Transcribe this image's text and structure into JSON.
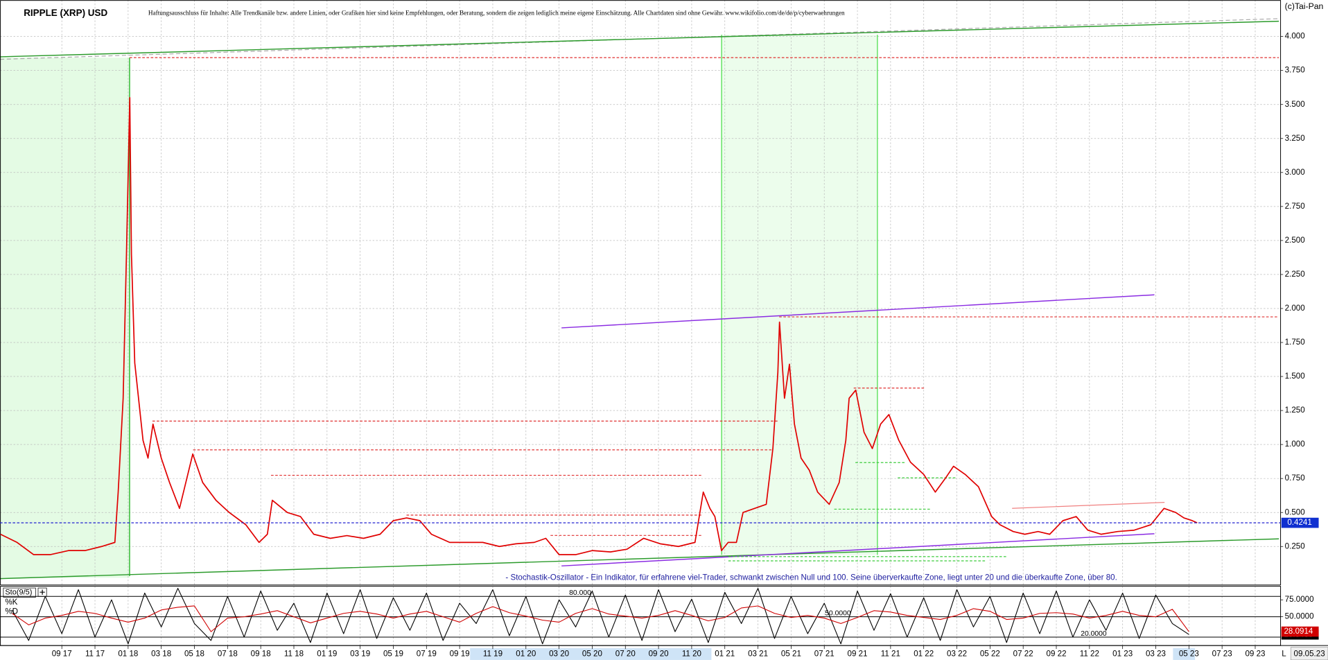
{
  "chart_data": [
    {
      "type": "line",
      "title": "RIPPLE (XRP) USD",
      "subtitle": "Haftungsausschluss für Inhalte: Alle Trendkanäle bzw. andere Linien, oder Grafiken hier sind keine Empfehlungen, oder Beratung, sondern die zeigen lediglich meine eigene Einschätzung. Alle Chartdaten sind ohne Gewähr. www.wikifolio.com/de/de/p/cyberwaehrungen",
      "source": "(c)Tai-Pan",
      "date_label": "09.05.23",
      "end_label": "L",
      "current_price": 0.4241,
      "x": [
        4.3,
        5.3,
        6.3,
        7.3,
        8.4,
        9.4,
        10.4,
        11.2,
        11.4,
        11.7,
        11.9,
        12.1,
        12.2,
        12.4,
        12.9,
        13.2,
        13.5,
        14.0,
        14.5,
        15.1,
        15.6,
        15.9,
        16.5,
        17.3,
        18.1,
        19.1,
        19.9,
        20.4,
        20.7,
        21.6,
        22.4,
        23.2,
        24.2,
        25.2,
        26.2,
        27.2,
        28.0,
        28.8,
        29.6,
        30.3,
        31.4,
        32.4,
        33.4,
        34.4,
        35.4,
        36.5,
        37.2,
        38.0,
        39.0,
        40.0,
        41.1,
        42.1,
        43.1,
        44.1,
        45.2,
        46.2,
        46.7,
        47.1,
        47.4,
        47.8,
        48.2,
        48.7,
        49.1,
        49.8,
        50.5,
        50.9,
        51.2,
        51.3,
        51.6,
        51.9,
        52.2,
        52.6,
        53.1,
        53.6,
        54.3,
        54.9,
        55.3,
        55.5,
        55.9,
        56.4,
        56.9,
        57.4,
        57.9,
        58.5,
        59.2,
        60.0,
        60.7,
        61.3,
        61.8,
        62.5,
        63.3,
        64.1,
        64.6,
        65.4,
        66.1,
        66.9,
        67.6,
        68.4,
        69.2,
        69.9,
        70.7,
        71.7,
        72.7,
        73.7,
        74.5,
        75.2,
        75.7,
        76.2,
        76.5
      ],
      "series": [
        {
          "color": "#e00000",
          "values": [
            0.34,
            0.28,
            0.19,
            0.19,
            0.22,
            0.22,
            0.25,
            0.28,
            0.65,
            1.34,
            2.4,
            3.55,
            2.4,
            1.6,
            1.03,
            0.9,
            1.15,
            0.9,
            0.72,
            0.53,
            0.78,
            0.93,
            0.72,
            0.59,
            0.5,
            0.41,
            0.28,
            0.34,
            0.59,
            0.5,
            0.47,
            0.34,
            0.31,
            0.33,
            0.31,
            0.34,
            0.44,
            0.46,
            0.44,
            0.34,
            0.28,
            0.28,
            0.28,
            0.25,
            0.27,
            0.28,
            0.31,
            0.19,
            0.19,
            0.22,
            0.21,
            0.23,
            0.31,
            0.27,
            0.25,
            0.28,
            0.65,
            0.53,
            0.47,
            0.22,
            0.28,
            0.28,
            0.5,
            0.53,
            0.56,
            0.97,
            1.53,
            1.9,
            1.34,
            1.59,
            1.15,
            0.9,
            0.81,
            0.65,
            0.56,
            0.72,
            1.03,
            1.34,
            1.4,
            1.09,
            0.97,
            1.15,
            1.22,
            1.03,
            0.87,
            0.78,
            0.65,
            0.75,
            0.84,
            0.78,
            0.69,
            0.47,
            0.41,
            0.36,
            0.34,
            0.36,
            0.34,
            0.44,
            0.47,
            0.37,
            0.34,
            0.36,
            0.37,
            0.41,
            0.53,
            0.5,
            0.46,
            0.44,
            0.4241
          ]
        }
      ],
      "xlim": [
        4.27,
        81.53
      ],
      "ylim": [
        -0.03,
        4.268
      ],
      "xticks": [
        {
          "value": 8,
          "label": "09 17"
        },
        {
          "value": 10,
          "label": "11 17"
        },
        {
          "value": 12,
          "label": "01 18"
        },
        {
          "value": 14,
          "label": "03 18"
        },
        {
          "value": 16,
          "label": "05 18"
        },
        {
          "value": 18,
          "label": "07 18"
        },
        {
          "value": 20,
          "label": "09 18"
        },
        {
          "value": 22,
          "label": "11 18"
        },
        {
          "value": 24,
          "label": "01 19"
        },
        {
          "value": 26,
          "label": "03 19"
        },
        {
          "value": 28,
          "label": "05 19"
        },
        {
          "value": 30,
          "label": "07 19"
        },
        {
          "value": 32,
          "label": "09 19"
        },
        {
          "value": 34,
          "label": "11 19"
        },
        {
          "value": 36,
          "label": "01 20"
        },
        {
          "value": 38,
          "label": "03 20"
        },
        {
          "value": 40,
          "label": "05 20"
        },
        {
          "value": 42,
          "label": "07 20"
        },
        {
          "value": 44,
          "label": "09 20"
        },
        {
          "value": 46,
          "label": "11 20"
        },
        {
          "value": 48,
          "label": "01 21"
        },
        {
          "value": 50,
          "label": "03 21"
        },
        {
          "value": 52,
          "label": "05 21"
        },
        {
          "value": 54,
          "label": "07 21"
        },
        {
          "value": 56,
          "label": "09 21"
        },
        {
          "value": 58,
          "label": "11 21"
        },
        {
          "value": 60,
          "label": "01 22"
        },
        {
          "value": 62,
          "label": "03 22"
        },
        {
          "value": 64,
          "label": "05 22"
        },
        {
          "value": 66,
          "label": "07 22"
        },
        {
          "value": 68,
          "label": "09 22"
        },
        {
          "value": 70,
          "label": "11 22"
        },
        {
          "value": 72,
          "label": "01 23"
        },
        {
          "value": 74,
          "label": "03 23"
        },
        {
          "value": 76,
          "label": "05 23"
        },
        {
          "value": 78,
          "label": "07 23"
        },
        {
          "value": 80,
          "label": "09 23"
        }
      ],
      "yticks": [
        {
          "value": 0.25,
          "label": "0.250"
        },
        {
          "value": 0.5,
          "label": "0.500"
        },
        {
          "value": 0.75,
          "label": "0.750"
        },
        {
          "value": 1,
          "label": "1.000"
        },
        {
          "value": 1.25,
          "label": "1.250"
        },
        {
          "value": 1.5,
          "label": "1.500"
        },
        {
          "value": 1.75,
          "label": "1.750"
        },
        {
          "value": 2,
          "label": "2.000"
        },
        {
          "value": 2.25,
          "label": "2.250"
        },
        {
          "value": 2.5,
          "label": "2.500"
        },
        {
          "value": 2.75,
          "label": "2.750"
        },
        {
          "value": 3,
          "label": "3.000"
        },
        {
          "value": 3.25,
          "label": "3.250"
        },
        {
          "value": 3.5,
          "label": "3.500"
        },
        {
          "value": 3.75,
          "label": "3.750"
        },
        {
          "value": 4,
          "label": "4.000"
        }
      ],
      "grid": true
    },
    {
      "type": "line",
      "title": "Sto(9/5)",
      "annotation": "- Stochastik-Oszillator - Ein Indikator, für erfahrene viel-Trader, schwankt zwischen Null und 100. Seine überverkaufte Zone, liegt unter 20 und die überkaufte Zone, über 80.",
      "x": [
        5,
        6,
        7,
        8,
        9,
        10,
        11,
        12,
        13,
        14,
        15,
        16,
        17,
        18,
        19,
        20,
        21,
        22,
        23,
        24,
        25,
        26,
        27,
        28,
        29,
        30,
        31,
        32,
        33,
        34,
        35,
        36,
        37,
        38,
        39,
        40,
        41,
        42,
        43,
        44,
        45,
        46,
        47,
        48,
        49,
        50,
        51,
        52,
        53,
        54,
        55,
        56,
        57,
        58,
        59,
        60,
        61,
        62,
        63,
        64,
        65,
        66,
        67,
        68,
        69,
        70,
        71,
        72,
        73,
        74,
        75,
        76
      ],
      "series": [
        {
          "name": "%K",
          "color": "#000000",
          "values": [
            60,
            15,
            80,
            25,
            90,
            20,
            75,
            10,
            85,
            35,
            92,
            40,
            15,
            80,
            20,
            88,
            30,
            70,
            12,
            85,
            25,
            90,
            18,
            78,
            30,
            85,
            15,
            70,
            40,
            90,
            22,
            80,
            10,
            75,
            35,
            88,
            20,
            82,
            15,
            90,
            28,
            76,
            12,
            86,
            40,
            92,
            18,
            80,
            25,
            70,
            10,
            88,
            30,
            84,
            20,
            78,
            15,
            90,
            35,
            80,
            12,
            85,
            25,
            88,
            20,
            75,
            30,
            85,
            18,
            82,
            40,
            23.8433
          ]
        },
        {
          "name": "%D",
          "color": "#d00000",
          "values": [
            55,
            38,
            48,
            52,
            58,
            55,
            48,
            42,
            48,
            60,
            64,
            66,
            28,
            48,
            50,
            54,
            59,
            50,
            41,
            48,
            55,
            58,
            54,
            48,
            54,
            58,
            50,
            42,
            55,
            65,
            56,
            51,
            45,
            42,
            55,
            62,
            54,
            51,
            48,
            52,
            59,
            52,
            44,
            49,
            63,
            66,
            55,
            49,
            52,
            48,
            40,
            49,
            59,
            57,
            52,
            49,
            46,
            52,
            62,
            58,
            46,
            48,
            55,
            56,
            54,
            48,
            52,
            58,
            52,
            50,
            61,
            28.0914
          ]
        }
      ],
      "xlim": [
        4.27,
        81.53
      ],
      "ylim": [
        7.5,
        95
      ],
      "yticks": [
        {
          "value": 75,
          "label": "75.0000"
        },
        {
          "value": 50,
          "label": "50.0000"
        }
      ],
      "levels": [
        {
          "value": 80,
          "label": "80.000"
        },
        {
          "value": 50,
          "label": "50.0000"
        },
        {
          "value": 20,
          "label": "20.0000"
        }
      ]
    }
  ]
}
